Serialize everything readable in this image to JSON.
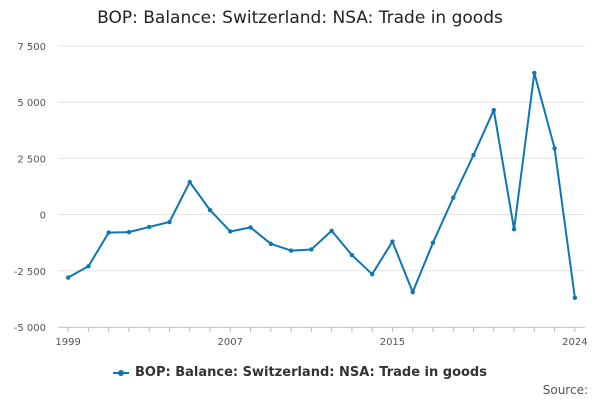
{
  "chart_data": {
    "type": "line",
    "title": "BOP: Balance: Switzerland: NSA: Trade in goods",
    "xlabel": "",
    "ylabel": "",
    "xlim": [
      1998.5,
      2024.5
    ],
    "ylim": [
      -5000,
      7500
    ],
    "y_ticks": [
      7500,
      5000,
      2500,
      0,
      -2500,
      -5000
    ],
    "y_tick_labels": [
      "7 500",
      "5 000",
      "2 500",
      "0",
      "-2 500",
      "-5 000"
    ],
    "x_ticks": [
      1999,
      2007,
      2015,
      2024
    ],
    "x_tick_labels": [
      "1999",
      "2007",
      "2015",
      "2024"
    ],
    "series": [
      {
        "name": "BOP: Balance: Switzerland: NSA: Trade in goods",
        "color": "#0e77b3",
        "x": [
          1999,
          2000,
          2001,
          2002,
          2003,
          2004,
          2005,
          2006,
          2007,
          2008,
          2009,
          2010,
          2011,
          2012,
          2013,
          2014,
          2015,
          2016,
          2017,
          2018,
          2019,
          2020,
          2021,
          2022,
          2023,
          2024
        ],
        "values": [
          -2800,
          -2300,
          -800,
          -780,
          -550,
          -330,
          1450,
          200,
          -750,
          -570,
          -1300,
          -1600,
          -1550,
          -720,
          -1800,
          -2650,
          -1200,
          -3450,
          -1250,
          750,
          2650,
          4650,
          -650,
          6300,
          2950,
          -3700
        ]
      }
    ],
    "legend": "bottom",
    "grid": true
  },
  "footer": {
    "source_label": "Source:"
  }
}
